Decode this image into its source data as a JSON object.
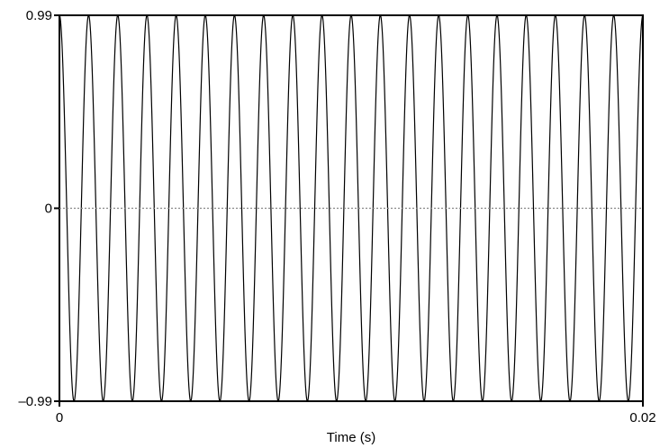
{
  "chart_data": {
    "type": "line",
    "title": "",
    "xlabel": "Time (s)",
    "ylabel": "",
    "xlim": [
      0,
      0.02
    ],
    "ylim": [
      -0.99,
      0.99
    ],
    "x_ticks": [
      {
        "value": 0,
        "label": "0"
      },
      {
        "value": 0.02,
        "label": "0.02"
      }
    ],
    "y_ticks": [
      {
        "value": -0.99,
        "label": "–0.99"
      },
      {
        "value": 0,
        "label": "0"
      },
      {
        "value": 0.99,
        "label": "0.99"
      }
    ],
    "zero_line": {
      "y": 0,
      "style": "dotted"
    },
    "grid": false,
    "series": [
      {
        "kind": "cosine",
        "amplitude": 0.99,
        "frequency_hz": 1000,
        "phase_rad": 0,
        "x_start": 0,
        "x_end": 0.02,
        "color": "#000000"
      }
    ]
  }
}
